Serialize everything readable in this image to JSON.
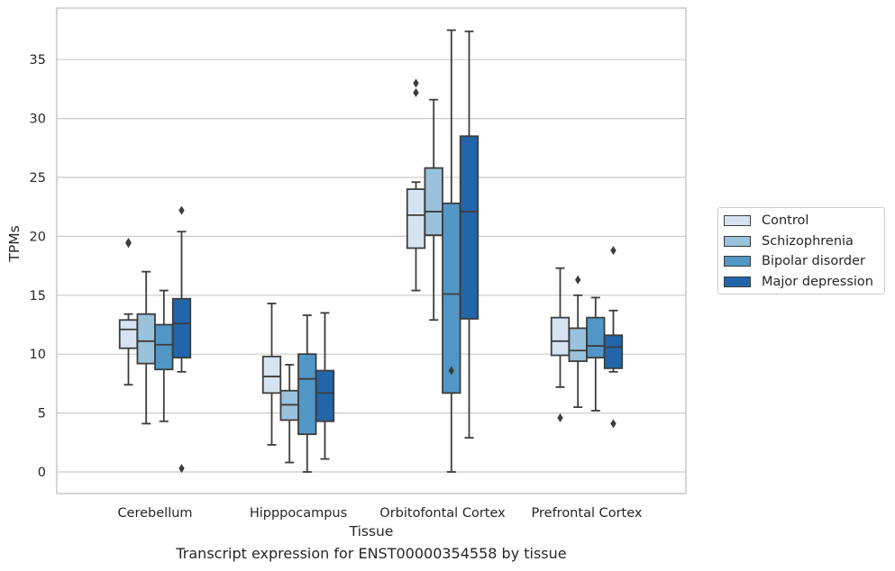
{
  "caption": "Transcript expression for ENST00000354558 by tissue",
  "chart_data": {
    "type": "box",
    "xlabel": "Tissue",
    "ylabel": "TPMs",
    "ylim": [
      -1.8,
      39
    ],
    "yticks": [
      0,
      5,
      10,
      15,
      20,
      25,
      30,
      35
    ],
    "grid": "horizontal",
    "legend_position": "right",
    "categories": [
      "Cerebellum",
      "Hipppocampus",
      "Orbitofontal Cortex",
      "Prefrontal Cortex"
    ],
    "series": [
      {
        "name": "Control",
        "color": "#d6e4f2",
        "boxes": [
          {
            "whislo": 7.4,
            "q1": 10.5,
            "med": 12.1,
            "q3": 12.9,
            "whishi": 13.4,
            "fliers": [
              19.5,
              19.4
            ]
          },
          {
            "whislo": 2.3,
            "q1": 6.7,
            "med": 8.1,
            "q3": 9.8,
            "whishi": 14.3,
            "fliers": []
          },
          {
            "whislo": 15.4,
            "q1": 19.0,
            "med": 21.8,
            "q3": 24.0,
            "whishi": 24.6,
            "fliers": [
              33.0,
              32.2
            ]
          },
          {
            "whislo": 7.2,
            "q1": 9.9,
            "med": 11.1,
            "q3": 13.1,
            "whishi": 17.3,
            "fliers": [
              4.6
            ]
          }
        ]
      },
      {
        "name": "Schizophrenia",
        "color": "#9ac2dc",
        "boxes": [
          {
            "whislo": 4.1,
            "q1": 9.2,
            "med": 11.1,
            "q3": 13.4,
            "whishi": 17.0,
            "fliers": []
          },
          {
            "whislo": 0.8,
            "q1": 4.4,
            "med": 5.7,
            "q3": 6.9,
            "whishi": 9.1,
            "fliers": []
          },
          {
            "whislo": 12.9,
            "q1": 20.1,
            "med": 22.1,
            "q3": 25.8,
            "whishi": 31.6,
            "fliers": []
          },
          {
            "whislo": 5.5,
            "q1": 9.4,
            "med": 10.3,
            "q3": 12.2,
            "whishi": 15.0,
            "fliers": [
              16.3
            ]
          }
        ]
      },
      {
        "name": "Bipolar disorder",
        "color": "#5097c6",
        "boxes": [
          {
            "whislo": 4.3,
            "q1": 8.7,
            "med": 10.8,
            "q3": 12.5,
            "whishi": 15.4,
            "fliers": []
          },
          {
            "whislo": 0.0,
            "q1": 3.2,
            "med": 7.9,
            "q3": 10.0,
            "whishi": 13.3,
            "fliers": []
          },
          {
            "whislo": 0.0,
            "q1": 6.7,
            "med": 15.1,
            "q3": 22.8,
            "whishi": 37.5,
            "fliers": [
              8.6
            ]
          },
          {
            "whislo": 5.2,
            "q1": 9.7,
            "med": 10.7,
            "q3": 13.1,
            "whishi": 14.8,
            "fliers": []
          }
        ]
      },
      {
        "name": "Major depression",
        "color": "#2265aa",
        "boxes": [
          {
            "whislo": 8.5,
            "q1": 9.7,
            "med": 12.6,
            "q3": 14.7,
            "whishi": 20.4,
            "fliers": [
              22.2,
              0.3
            ]
          },
          {
            "whislo": 1.1,
            "q1": 4.3,
            "med": 6.7,
            "q3": 8.6,
            "whishi": 13.5,
            "fliers": []
          },
          {
            "whislo": 2.9,
            "q1": 13.0,
            "med": 22.1,
            "q3": 28.5,
            "whishi": 37.4,
            "fliers": []
          },
          {
            "whislo": 8.5,
            "q1": 8.8,
            "med": 10.6,
            "q3": 11.6,
            "whishi": 13.7,
            "fliers": [
              18.8,
              4.1
            ]
          }
        ]
      }
    ]
  }
}
